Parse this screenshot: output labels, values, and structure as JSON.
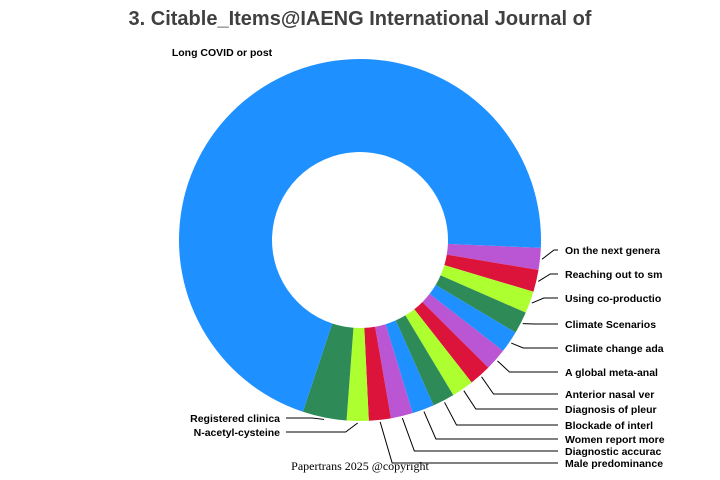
{
  "chart_data": {
    "type": "pie",
    "variant": "donut",
    "title": "3. Citable_Items@IAENG International Journal of",
    "footer": "Papertrans 2025 @copyright",
    "slices": [
      {
        "label": "On the next genera",
        "value": 1,
        "color": "#BA55D3"
      },
      {
        "label": "Reaching out to sm",
        "value": 1,
        "color": "#DC143C"
      },
      {
        "label": "Using co-productio",
        "value": 1,
        "color": "#ADFF2F"
      },
      {
        "label": "Climate Scenarios",
        "value": 1,
        "color": "#2E8B57"
      },
      {
        "label": "Climate change ada",
        "value": 1,
        "color": "#1E90FF"
      },
      {
        "label": "A global meta-anal",
        "value": 1,
        "color": "#BA55D3"
      },
      {
        "label": "Anterior nasal ver",
        "value": 1,
        "color": "#DC143C"
      },
      {
        "label": "Diagnosis of pleur",
        "value": 1,
        "color": "#ADFF2F"
      },
      {
        "label": "Blockade of interl",
        "value": 1,
        "color": "#2E8B57"
      },
      {
        "label": "Women report more",
        "value": 1,
        "color": "#1E90FF"
      },
      {
        "label": "Diagnostic accurac",
        "value": 1,
        "color": "#BA55D3"
      },
      {
        "label": "Male predominance",
        "value": 1,
        "color": "#DC143C"
      },
      {
        "label": "N-acetyl-cysteine",
        "value": 1,
        "color": "#ADFF2F"
      },
      {
        "label": "Registered clinica",
        "value": 2,
        "color": "#2E8B57"
      },
      {
        "label": "Long COVID or post",
        "value": 36,
        "color": "#1E90FF"
      }
    ]
  }
}
